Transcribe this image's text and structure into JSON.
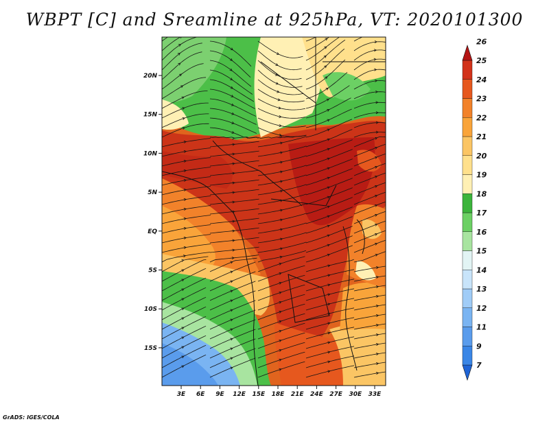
{
  "title": "WBPT [C] and Sreamline at 925hPa, VT: 2020101300",
  "credit": "GrADS: IGES/COLA",
  "map": {
    "lat_labels": [
      "20N",
      "15N",
      "10N",
      "5N",
      "EQ",
      "5S",
      "10S",
      "15S"
    ],
    "lon_labels": [
      "3E",
      "6E",
      "9E",
      "12E",
      "15E",
      "18E",
      "21E",
      "24E",
      "27E",
      "30E",
      "33E"
    ]
  },
  "colorbar": {
    "levels": [
      "7",
      "9",
      "11",
      "12",
      "13",
      "14",
      "15",
      "16",
      "17",
      "18",
      "19",
      "20",
      "21",
      "22",
      "23",
      "24",
      "25",
      "26"
    ],
    "colors": [
      "#1f64d6",
      "#3a86e6",
      "#5a9cec",
      "#7ab4f2",
      "#a0ccf7",
      "#c8e4fa",
      "#e2f4f4",
      "#a8e4a0",
      "#6cd064",
      "#3cb43c",
      "#fff0b4",
      "#ffe08c",
      "#fbc564",
      "#f9a43a",
      "#f2822a",
      "#e6581e",
      "#d2321a",
      "#b41414"
    ]
  }
}
